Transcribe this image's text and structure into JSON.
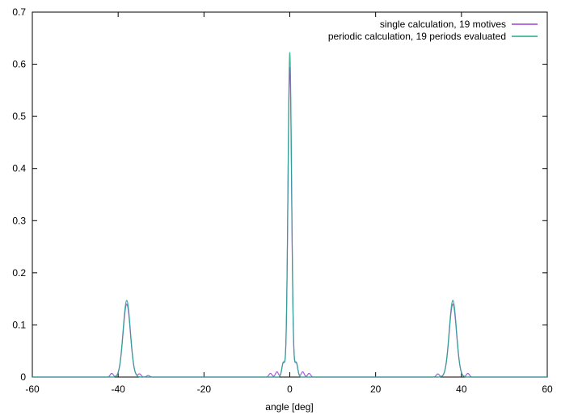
{
  "chart_data": {
    "type": "line",
    "title": "",
    "xlabel": "angle [deg]",
    "ylabel": "",
    "xlim": [
      -60,
      60
    ],
    "ylim": [
      0,
      0.7
    ],
    "xticks": [
      -60,
      -40,
      -20,
      0,
      20,
      40,
      60
    ],
    "yticks": [
      0,
      0.1,
      0.2,
      0.3,
      0.4,
      0.5,
      0.6,
      0.7
    ],
    "x_tick_labels": [
      "-60",
      "-40",
      "-20",
      "0",
      "20",
      "40",
      "60"
    ],
    "y_tick_labels": [
      "0",
      "0.1",
      "0.2",
      "0.3",
      "0.4",
      "0.5",
      "0.6",
      "0.7"
    ],
    "grid": false,
    "legend_position": "top-right",
    "series": [
      {
        "name": "single calculation, 19 motives",
        "color": "#9a3fd6",
        "peaks": [
          {
            "center": -38,
            "height": 0.14,
            "width": 0.85
          },
          {
            "center": 0,
            "height": 0.595,
            "width": 0.42
          },
          {
            "center": 38,
            "height": 0.14,
            "width": 0.85
          }
        ],
        "sidelobes": [
          {
            "x": -41.5,
            "y": 0.007
          },
          {
            "x": -35,
            "y": 0.006
          },
          {
            "x": -33,
            "y": 0.003
          },
          {
            "x": -4.5,
            "y": 0.007
          },
          {
            "x": -3,
            "y": 0.01
          },
          {
            "x": -1.5,
            "y": 0.027
          },
          {
            "x": 1.5,
            "y": 0.027
          },
          {
            "x": 3,
            "y": 0.01
          },
          {
            "x": 4.5,
            "y": 0.007
          },
          {
            "x": 34.5,
            "y": 0.006
          },
          {
            "x": 41.5,
            "y": 0.007
          }
        ]
      },
      {
        "name": "periodic calculation, 19 periods evaluated",
        "color": "#1fa88a",
        "peaks": [
          {
            "center": -38,
            "height": 0.147,
            "width": 0.85
          },
          {
            "center": 0,
            "height": 0.623,
            "width": 0.42
          },
          {
            "center": 38,
            "height": 0.147,
            "width": 0.85
          }
        ],
        "sidelobes": [
          {
            "x": -1.5,
            "y": 0.028
          },
          {
            "x": 1.5,
            "y": 0.028
          }
        ]
      }
    ]
  }
}
